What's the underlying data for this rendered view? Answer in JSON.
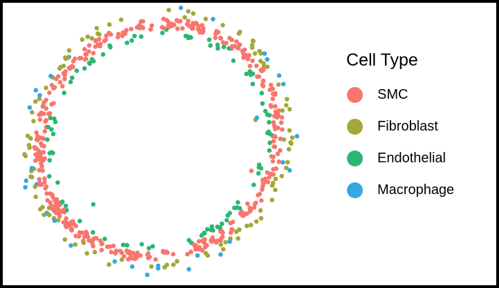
{
  "chart_data": {
    "type": "scatter",
    "title": "",
    "xlabel": "",
    "ylabel": "",
    "axes_visible": false,
    "grid": false,
    "xlim": [
      0,
      100
    ],
    "ylim": [
      0,
      100
    ],
    "legend": {
      "title": "Cell Type",
      "placement": "right",
      "entries": [
        {
          "name": "SMC",
          "color": "#f8766d"
        },
        {
          "name": "Fibroblast",
          "color": "#a3a838"
        },
        {
          "name": "Endothelial",
          "color": "#2bb673"
        },
        {
          "name": "Macrophage",
          "color": "#35a8e0"
        }
      ]
    },
    "ring_shape": {
      "description": "cells arranged along a vessel-wall ring",
      "center": [
        48.6,
        52.4
      ],
      "radius_x": 38.5,
      "radius_y": 42.0,
      "tilt_degrees": -28,
      "band_width": 3.4
    },
    "series": [
      {
        "name": "SMC",
        "color": "#f8766d",
        "density": "majority of cells, continuous band around the ring"
      },
      {
        "name": "Fibroblast",
        "color": "#a3a838",
        "density": "scattered mostly on the outer edge of the ring, denser on left and bottom"
      },
      {
        "name": "Endothelial",
        "color": "#2bb673",
        "density": "scattered along the inner edge of the ring",
        "outlier": {
          "x": 27.1,
          "y": 29.6
        }
      },
      {
        "name": "Macrophage",
        "color": "#35a8e0",
        "density": "sparse, mostly on the outer edge"
      }
    ],
    "outliers": [
      {
        "series": "SMC",
        "x": 79.2,
        "y": 41.5
      },
      {
        "series": "Fibroblast",
        "x": 80.6,
        "y": 59.5
      },
      {
        "series": "Macrophage",
        "x": 81.0,
        "y": 60.3
      }
    ]
  }
}
